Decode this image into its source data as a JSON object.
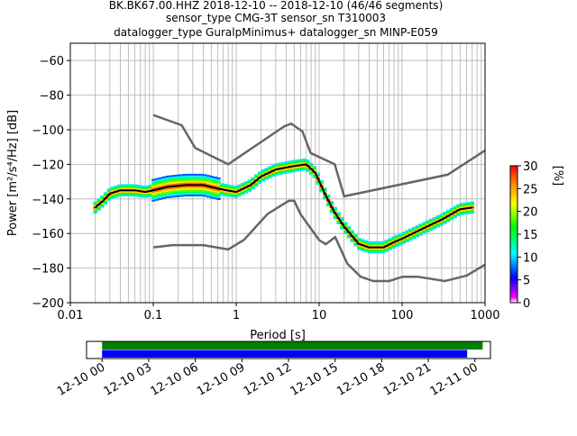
{
  "chart_data": [
    {
      "type": "heatmap",
      "title_lines": [
        "BK.BK67.00.HHZ   2018-12-10 -- 2018-12-10  (46/46 segments)",
        "sensor_type CMG-3T sensor_sn T310003",
        "datalogger_type GuralpMinimus+ datalogger_sn MINP-E059"
      ],
      "xlabel": "Period [s]",
      "ylabel": "Power [m²/s⁴/Hz] [dB]",
      "xscale": "log",
      "xlim": [
        0.01,
        1000
      ],
      "ylim": [
        -200,
        -50
      ],
      "x_ticks": [
        0.01,
        0.1,
        1,
        10,
        100,
        1000
      ],
      "x_tick_labels": [
        "0.01",
        "0.1",
        "1",
        "10",
        "100",
        "1000"
      ],
      "y_ticks": [
        -200,
        -180,
        -160,
        -140,
        -120,
        -100,
        -80,
        -60
      ],
      "y_tick_labels": [
        "−200",
        "−180",
        "−160",
        "−140",
        "−120",
        "−100",
        "−80",
        "−60"
      ],
      "grid": true,
      "colorbar": {
        "label": "[%]",
        "min": 0,
        "max": 30,
        "ticks": [
          0,
          5,
          10,
          15,
          20,
          25,
          30
        ],
        "tick_labels": [
          "0",
          "5",
          "10",
          "15",
          "20",
          "25",
          "30"
        ]
      },
      "series": [
        {
          "role": "mode",
          "color": "#000000",
          "points": [
            [
              0.02,
              -145
            ],
            [
              0.025,
              -141
            ],
            [
              0.03,
              -137
            ],
            [
              0.04,
              -135
            ],
            [
              0.06,
              -135
            ],
            [
              0.08,
              -136
            ],
            [
              0.1,
              -135
            ],
            [
              0.15,
              -133
            ],
            [
              0.25,
              -132
            ],
            [
              0.4,
              -132
            ],
            [
              0.6,
              -134
            ],
            [
              1,
              -136
            ],
            [
              1.5,
              -132
            ],
            [
              2,
              -127
            ],
            [
              3,
              -123
            ],
            [
              5,
              -121
            ],
            [
              7,
              -120
            ],
            [
              9,
              -125
            ],
            [
              12,
              -138
            ],
            [
              15,
              -147
            ],
            [
              20,
              -156
            ],
            [
              30,
              -166
            ],
            [
              40,
              -168
            ],
            [
              60,
              -168
            ],
            [
              80,
              -165
            ],
            [
              100,
              -163
            ],
            [
              200,
              -156
            ],
            [
              300,
              -152
            ],
            [
              500,
              -146
            ],
            [
              700,
              -145
            ]
          ]
        },
        {
          "role": "noise-model-high",
          "color": "#666666",
          "points": [
            [
              0.1,
              -91.5
            ],
            [
              0.22,
              -97.4
            ],
            [
              0.32,
              -110.5
            ],
            [
              0.8,
              -120
            ],
            [
              3.8,
              -98
            ],
            [
              4.6,
              -96.5
            ],
            [
              6.3,
              -101
            ],
            [
              7.9,
              -113.5
            ],
            [
              15.4,
              -120
            ],
            [
              20,
              -138.5
            ],
            [
              354.8,
              -126
            ],
            [
              1000,
              -112
            ]
          ]
        },
        {
          "role": "noise-model-low",
          "color": "#666666",
          "points": [
            [
              0.1,
              -168
            ],
            [
              0.17,
              -166.7
            ],
            [
              0.4,
              -166.7
            ],
            [
              0.8,
              -169.2
            ],
            [
              1.24,
              -163.7
            ],
            [
              2.4,
              -148.6
            ],
            [
              4.3,
              -141.1
            ],
            [
              5,
              -141.1
            ],
            [
              6,
              -149
            ],
            [
              10,
              -163.8
            ],
            [
              12,
              -166.2
            ],
            [
              15.6,
              -162.1
            ],
            [
              21.9,
              -177.5
            ],
            [
              31.6,
              -185
            ],
            [
              45,
              -187.5
            ],
            [
              70,
              -187.5
            ],
            [
              101,
              -185
            ],
            [
              154,
              -185
            ],
            [
              328,
              -187.5
            ],
            [
              600,
              -184.4
            ],
            [
              1000,
              -178
            ]
          ]
        }
      ]
    },
    {
      "type": "timeline",
      "x_tick_labels": [
        "12-10 00",
        "12-10 03",
        "12-10 06",
        "12-10 09",
        "12-10 12",
        "12-10 15",
        "12-10 18",
        "12-10 21",
        "12-11 00"
      ],
      "xlim_hours": [
        -1,
        25
      ],
      "bars": [
        {
          "name": "",
          "color": "#008000",
          "start_hour": 0,
          "end_hour": 24.5
        },
        {
          "name": "",
          "color": "#0000ff",
          "start_hour": 0,
          "end_hour": 23.5
        }
      ]
    }
  ]
}
